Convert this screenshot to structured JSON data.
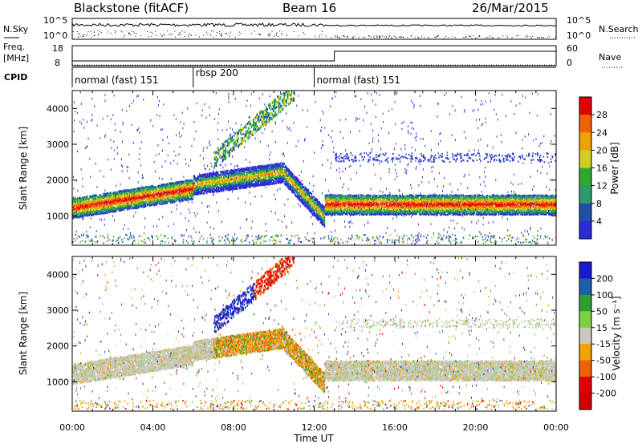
{
  "header": {
    "station": "Blackstone (fitACF)",
    "beam": "Beam 16",
    "date": "26/Mar/2015"
  },
  "chart_data": [
    {
      "type": "line",
      "panel": "noise",
      "left_label": "N.Sky",
      "right_label": "N.Search",
      "left_ticks": [
        "10^5",
        "10^0"
      ],
      "right_ticks": [
        "10^5",
        "10^0"
      ]
    },
    {
      "type": "line",
      "panel": "frequency",
      "left_label_lines": [
        "Freq.",
        "[MHz]"
      ],
      "right_label": "Nave",
      "left_ticks": [
        18,
        8
      ],
      "right_ticks": [
        60,
        0
      ],
      "ylim_left": [
        8,
        18
      ],
      "ylim_right": [
        0,
        60
      ]
    },
    {
      "type": "table",
      "panel": "cpid",
      "label": "CPID",
      "segments": [
        {
          "start": 0,
          "end": 6,
          "label": "normal (fast) 151"
        },
        {
          "start": 6,
          "end": 12,
          "label": "rbsp 200"
        },
        {
          "start": 12,
          "end": 24,
          "label": "normal (fast) 151"
        }
      ]
    },
    {
      "type": "heatmap",
      "panel": "power",
      "ylabel": "Slant Range [km]",
      "yticks": [
        1000,
        2000,
        3000,
        4000
      ],
      "ylim": [
        180,
        4500
      ],
      "colorbar_label": "Power [dB]",
      "colorbar_ticks": [
        4,
        8,
        12,
        16,
        20,
        24,
        28
      ],
      "colorbar_range": [
        0,
        32
      ],
      "colors": [
        "#2b2bd8",
        "#1f4fa8",
        "#2f9a6a",
        "#2fa82f",
        "#cfcf1f",
        "#f0a000",
        "#f06000",
        "#e00000"
      ]
    },
    {
      "type": "heatmap",
      "panel": "velocity",
      "ylabel": "Slant Range [km]",
      "yticks": [
        1000,
        2000,
        3000,
        4000
      ],
      "ylim": [
        180,
        4500
      ],
      "colorbar_label": "Velocity [m s⁻¹]",
      "colorbar_ticks": [
        200,
        100,
        50,
        15,
        -15,
        -50,
        -100,
        -200
      ],
      "colors": [
        "#1a1ad0",
        "#1f5fa8",
        "#2fa030",
        "#7ad040",
        "#c8c8c0",
        "#f0a000",
        "#f06000",
        "#e00000",
        "#d00000"
      ],
      "xlabel": "Time UT",
      "xticks": [
        "00:00",
        "04:00",
        "08:00",
        "12:00",
        "16:00",
        "20:00",
        "00:00"
      ],
      "xlim": [
        0,
        24
      ]
    }
  ]
}
